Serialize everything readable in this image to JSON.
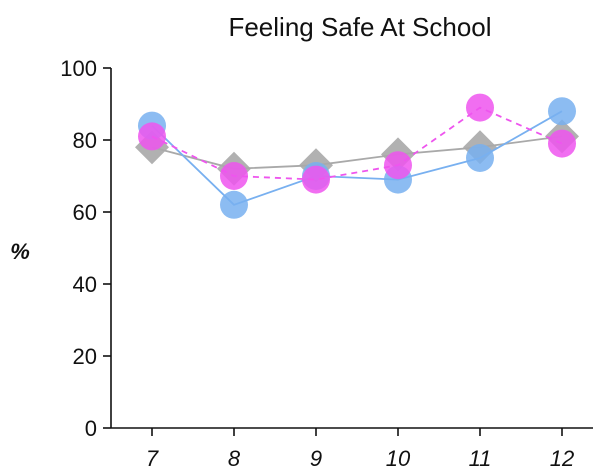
{
  "chart_data": {
    "type": "line",
    "title": "Feeling Safe At School",
    "xlabel": "",
    "ylabel": "%",
    "categories": [
      "7",
      "8",
      "9",
      "10",
      "11",
      "12"
    ],
    "ylim": [
      0,
      100
    ],
    "yticks": [
      0,
      20,
      40,
      60,
      80,
      100
    ],
    "grid": false,
    "series": [
      {
        "values": [
          78,
          72,
          73,
          76,
          78,
          81
        ],
        "color": "#a9a9a9",
        "marker": "diamond",
        "linestyle": "solid"
      },
      {
        "values": [
          84,
          62,
          70,
          69,
          75,
          88
        ],
        "color": "#78b0f0",
        "marker": "circle",
        "linestyle": "solid"
      },
      {
        "values": [
          81,
          70,
          69,
          73,
          89,
          79
        ],
        "color": "#ee55ee",
        "marker": "circle",
        "linestyle": "dashed"
      }
    ]
  }
}
